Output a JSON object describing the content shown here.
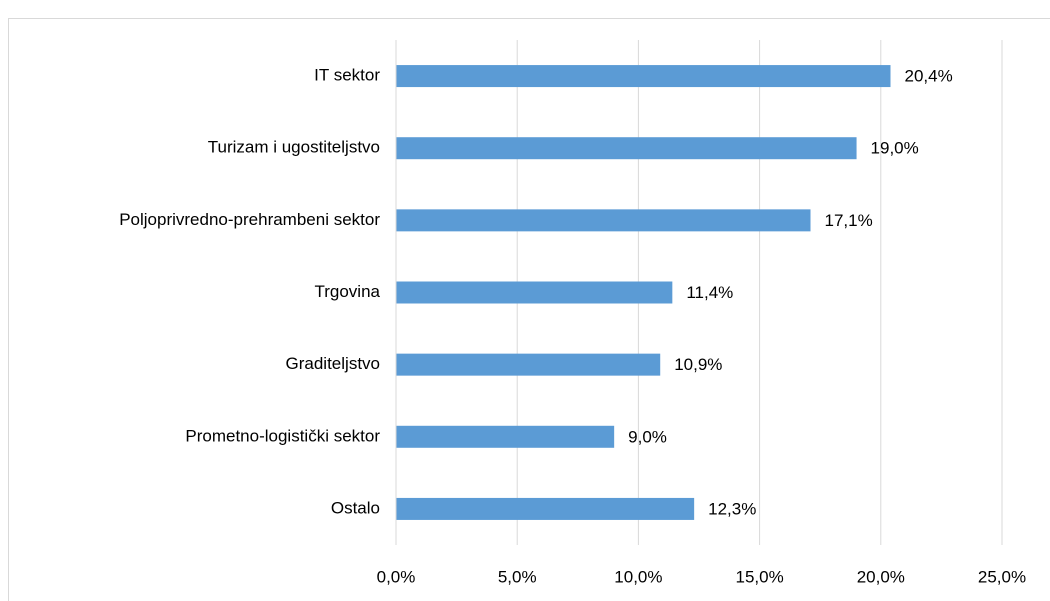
{
  "chart_data": {
    "type": "bar",
    "orientation": "horizontal",
    "categories": [
      "IT sektor",
      "Turizam i ugostiteljstvo",
      "Poljoprivredno-prehrambeni sektor",
      "Trgovina",
      "Graditeljstvo",
      "Prometno-logistički sektor",
      "Ostalo"
    ],
    "values": [
      20.4,
      19.0,
      17.1,
      11.4,
      10.9,
      9.0,
      12.3
    ],
    "value_labels": [
      "20,4%",
      "19,0%",
      "17,1%",
      "11,4%",
      "10,9%",
      "9,0%",
      "12,3%"
    ],
    "color": "#5b9bd5",
    "xlim": [
      0,
      25
    ],
    "xticks": [
      {
        "value": 0,
        "label": "0,0%"
      },
      {
        "value": 5,
        "label": "5,0%"
      },
      {
        "value": 10,
        "label": "10,0%"
      },
      {
        "value": 15,
        "label": "15,0%"
      },
      {
        "value": 20,
        "label": "20,0%"
      },
      {
        "value": 25,
        "label": "25,0%"
      }
    ],
    "grid": true
  }
}
